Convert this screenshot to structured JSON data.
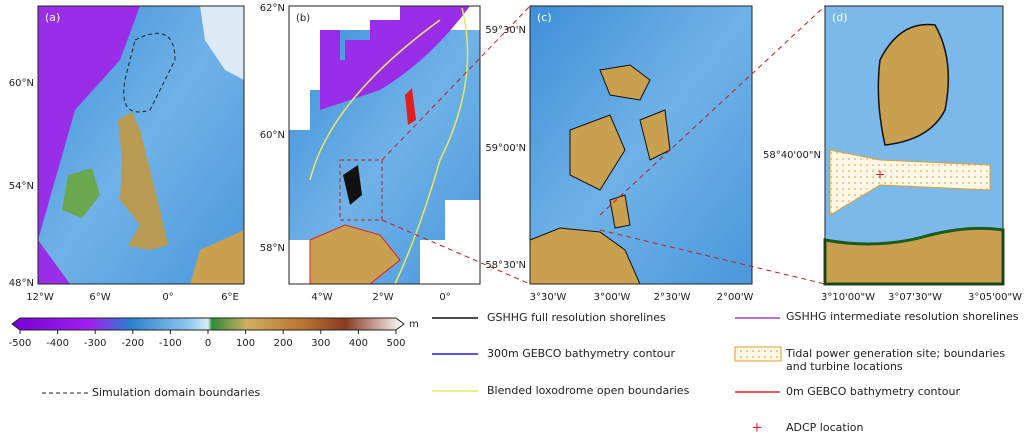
{
  "panels": [
    {
      "label": "(a)",
      "yticks": [
        "60°N",
        "54°N",
        "48°N"
      ],
      "xticks": [
        "12°W",
        "6°W",
        "0°",
        "6°E"
      ]
    },
    {
      "label": "(b)",
      "yticks": [
        "62°N",
        "60°N",
        "58°N"
      ],
      "xticks": [
        "4°W",
        "2°W",
        "0°"
      ]
    },
    {
      "label": "(c)",
      "yticks": [
        "59°30'N",
        "59°00'N",
        "58°30'N"
      ],
      "xticks": [
        "3°30'W",
        "3°00'W",
        "2°30'W",
        "2°00'W"
      ]
    },
    {
      "label": "(d)",
      "yticks": [
        "58°40'00\"N"
      ],
      "xticks": [
        "3°10'00\"W",
        "3°07'30\"W",
        "3°05'00\"W"
      ]
    }
  ],
  "colorbar": {
    "unit": "m",
    "ticks": [
      -500,
      -400,
      -300,
      -200,
      -100,
      0,
      100,
      200,
      300,
      400,
      500
    ]
  },
  "legend": [
    "Simulation domain boundaries",
    "GSHHG full resolution shorelines",
    "300m GEBCO bathymetry contour",
    "Blended loxodrome open boundaries",
    "GSHHG intermediate resolution shorelines",
    "Tidal power generation site; boundaries and turbine locations",
    "0m GEBCO bathymetry contour",
    "ADCP location"
  ]
}
